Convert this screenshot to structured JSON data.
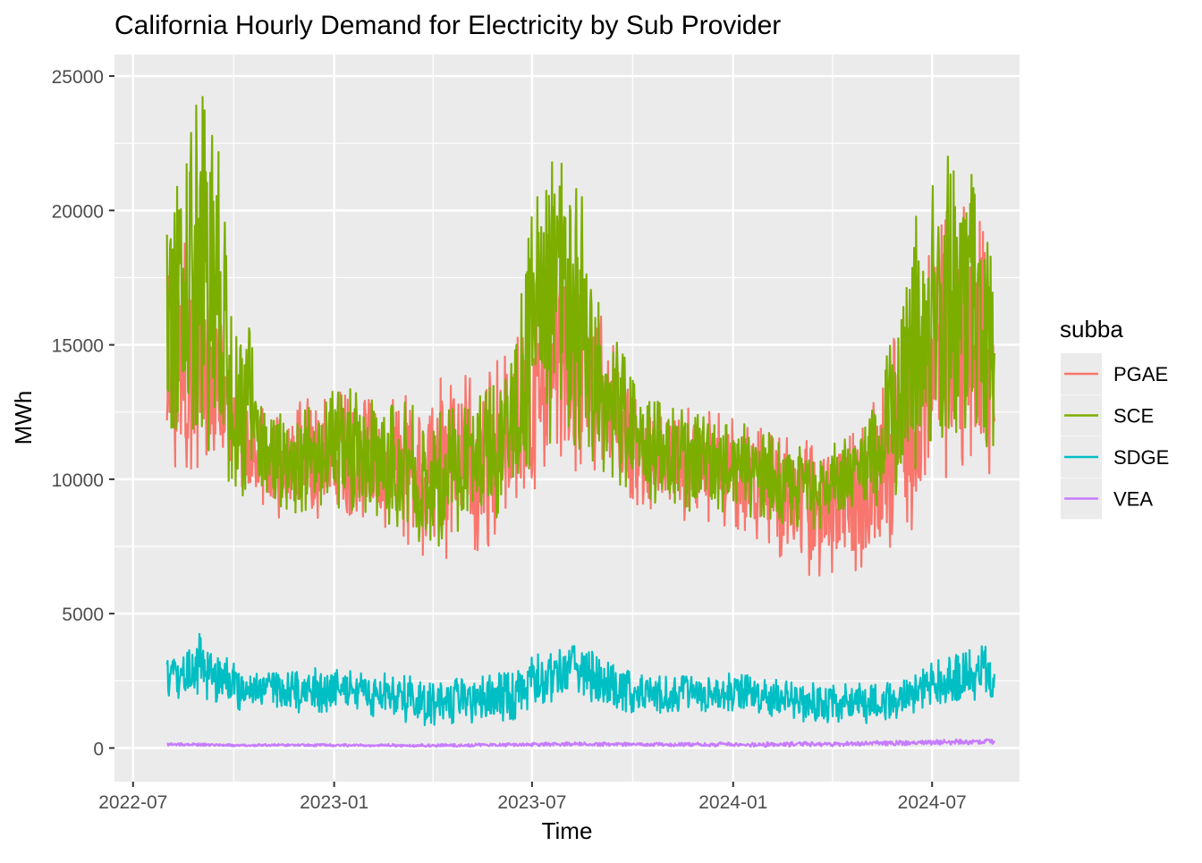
{
  "chart_data": {
    "type": "line",
    "title": "California Hourly Demand for Electricity by Sub Provider",
    "xlabel": "Time",
    "ylabel": "MWh",
    "x_ticks": [
      "2022-07",
      "2023-01",
      "2023-07",
      "2024-01",
      "2024-07"
    ],
    "x_tick_dates": [
      "2022-07-01",
      "2023-01-01",
      "2023-07-01",
      "2024-01-01",
      "2024-07-01"
    ],
    "x_range": [
      "2022-06-14",
      "2024-09-19"
    ],
    "y_ticks": [
      0,
      5000,
      10000,
      15000,
      20000,
      25000
    ],
    "ylim": [
      -1250,
      25800
    ],
    "grid": true,
    "legend_title": "subba",
    "legend_position": "right",
    "series": [
      {
        "name": "PGAE",
        "color": "#F8766D",
        "x": [
          "2022-08-01",
          "2022-08-15",
          "2022-09-01",
          "2022-09-15",
          "2022-10-01",
          "2022-10-15",
          "2022-11-01",
          "2022-11-15",
          "2022-12-01",
          "2022-12-15",
          "2023-01-01",
          "2023-01-15",
          "2023-02-01",
          "2023-02-15",
          "2023-03-01",
          "2023-03-15",
          "2023-04-01",
          "2023-04-15",
          "2023-05-01",
          "2023-05-15",
          "2023-06-01",
          "2023-06-15",
          "2023-07-01",
          "2023-07-15",
          "2023-08-01",
          "2023-08-15",
          "2023-09-01",
          "2023-09-15",
          "2023-10-01",
          "2023-10-15",
          "2023-11-01",
          "2023-11-15",
          "2023-12-01",
          "2023-12-15",
          "2024-01-01",
          "2024-01-15",
          "2024-02-01",
          "2024-02-15",
          "2024-03-01",
          "2024-03-15",
          "2024-04-01",
          "2024-04-15",
          "2024-05-01",
          "2024-05-15",
          "2024-06-01",
          "2024-06-15",
          "2024-07-01",
          "2024-07-15",
          "2024-08-01",
          "2024-08-15",
          "2024-08-27"
        ],
        "min": [
          11000,
          10000,
          10500,
          10800,
          9800,
          9300,
          8800,
          8400,
          8300,
          8300,
          8800,
          8600,
          8400,
          8100,
          7800,
          7300,
          6900,
          6800,
          7000,
          7300,
          7800,
          8000,
          9000,
          10200,
          10300,
          10200,
          9900,
          9600,
          9200,
          8700,
          8600,
          8500,
          8300,
          8200,
          8200,
          8000,
          7500,
          7000,
          6600,
          6300,
          6400,
          6500,
          6600,
          7000,
          7800,
          8200,
          9200,
          10100,
          10400,
          10200,
          9600
        ],
        "max": [
          17500,
          19000,
          18500,
          16800,
          13500,
          13000,
          12800,
          13000,
          13200,
          13300,
          13300,
          13200,
          13100,
          13000,
          13200,
          13600,
          13700,
          13900,
          14000,
          14200,
          14500,
          15200,
          17500,
          18500,
          18800,
          18000,
          16500,
          15000,
          13800,
          13000,
          12800,
          12700,
          12600,
          12500,
          12300,
          12100,
          11900,
          11700,
          11500,
          11400,
          11500,
          11800,
          12200,
          13500,
          16000,
          17500,
          19000,
          20000,
          20500,
          19500,
          17500
        ]
      },
      {
        "name": "SCE",
        "color": "#7CAE00",
        "x": [
          "2022-08-01",
          "2022-08-15",
          "2022-09-01",
          "2022-09-15",
          "2022-10-01",
          "2022-10-15",
          "2022-11-01",
          "2022-11-15",
          "2022-12-01",
          "2022-12-15",
          "2023-01-01",
          "2023-01-15",
          "2023-02-01",
          "2023-02-15",
          "2023-03-01",
          "2023-03-15",
          "2023-04-01",
          "2023-04-15",
          "2023-05-01",
          "2023-05-15",
          "2023-06-01",
          "2023-06-15",
          "2023-07-01",
          "2023-07-15",
          "2023-08-01",
          "2023-08-15",
          "2023-09-01",
          "2023-09-15",
          "2023-10-01",
          "2023-10-15",
          "2023-11-01",
          "2023-11-15",
          "2023-12-01",
          "2023-12-15",
          "2024-01-01",
          "2024-01-15",
          "2024-02-01",
          "2024-02-15",
          "2024-03-01",
          "2024-03-15",
          "2024-04-01",
          "2024-04-15",
          "2024-05-01",
          "2024-05-15",
          "2024-06-01",
          "2024-06-15",
          "2024-07-01",
          "2024-07-15",
          "2024-08-01",
          "2024-08-15",
          "2024-08-27"
        ],
        "min": [
          11500,
          11000,
          11200,
          10800,
          9500,
          9300,
          8900,
          8700,
          8700,
          8800,
          8900,
          8800,
          8600,
          8300,
          8000,
          7600,
          7400,
          7600,
          7900,
          8200,
          8600,
          9000,
          10500,
          11200,
          11300,
          11000,
          10300,
          9800,
          9300,
          9000,
          8900,
          8800,
          8800,
          8700,
          8700,
          8600,
          8500,
          8300,
          8200,
          8100,
          8300,
          8500,
          8800,
          9000,
          9500,
          10200,
          11000,
          11500,
          11700,
          11500,
          10800
        ],
        "max": [
          20500,
          21800,
          24600,
          23000,
          17000,
          15800,
          12800,
          12600,
          12800,
          13000,
          13300,
          13400,
          13200,
          13000,
          12900,
          12800,
          12500,
          12600,
          12700,
          13200,
          13800,
          15500,
          20500,
          22300,
          22300,
          21000,
          17800,
          15500,
          13800,
          13000,
          12800,
          12600,
          12400,
          12200,
          12000,
          12100,
          11800,
          11500,
          11300,
          11200,
          11300,
          11600,
          12000,
          13500,
          16800,
          20000,
          21000,
          22200,
          21800,
          20800,
          20000
        ]
      },
      {
        "name": "SDGE",
        "color": "#00BFC4",
        "x": [
          "2022-08-01",
          "2022-08-15",
          "2022-09-01",
          "2022-09-15",
          "2022-10-01",
          "2022-10-15",
          "2022-11-01",
          "2022-11-15",
          "2022-12-01",
          "2022-12-15",
          "2023-01-01",
          "2023-01-15",
          "2023-02-01",
          "2023-02-15",
          "2023-03-01",
          "2023-03-15",
          "2023-04-01",
          "2023-04-15",
          "2023-05-01",
          "2023-05-15",
          "2023-06-01",
          "2023-06-15",
          "2023-07-01",
          "2023-07-15",
          "2023-08-01",
          "2023-08-15",
          "2023-09-01",
          "2023-09-15",
          "2023-10-01",
          "2023-10-15",
          "2023-11-01",
          "2023-11-15",
          "2023-12-01",
          "2023-12-15",
          "2024-01-01",
          "2024-01-15",
          "2024-02-01",
          "2024-02-15",
          "2024-03-01",
          "2024-03-15",
          "2024-04-01",
          "2024-04-15",
          "2024-05-01",
          "2024-05-15",
          "2024-06-01",
          "2024-06-15",
          "2024-07-01",
          "2024-07-15",
          "2024-08-01",
          "2024-08-15",
          "2024-08-27"
        ],
        "min": [
          1900,
          1800,
          1900,
          1600,
          1400,
          1400,
          1300,
          1300,
          1300,
          1300,
          1300,
          1300,
          1200,
          1100,
          1000,
          900,
          800,
          800,
          900,
          900,
          1000,
          1000,
          1400,
          1700,
          1800,
          1700,
          1500,
          1400,
          1300,
          1300,
          1300,
          1300,
          1300,
          1300,
          1300,
          1300,
          1200,
          1100,
          1000,
          900,
          900,
          900,
          900,
          1000,
          1100,
          1300,
          1600,
          1700,
          1800,
          1700,
          1600
        ],
        "max": [
          3500,
          3300,
          4500,
          3700,
          3200,
          2900,
          2800,
          2800,
          2900,
          3000,
          3000,
          2900,
          2800,
          2800,
          2700,
          2700,
          2700,
          2600,
          2600,
          2800,
          2800,
          2800,
          3500,
          3600,
          3700,
          4000,
          3300,
          3100,
          2800,
          2800,
          2700,
          2700,
          2700,
          2700,
          2800,
          2700,
          2600,
          2500,
          2500,
          2500,
          2400,
          2400,
          2400,
          2400,
          2500,
          2700,
          3200,
          3400,
          3600,
          3900,
          3800
        ]
      },
      {
        "name": "VEA",
        "color": "#C77CFF",
        "x": [
          "2022-08-01",
          "2022-10-01",
          "2022-12-01",
          "2023-02-01",
          "2023-04-01",
          "2023-06-01",
          "2023-08-01",
          "2023-10-01",
          "2023-12-01",
          "2024-02-01",
          "2024-04-01",
          "2024-06-01",
          "2024-08-27"
        ],
        "min": [
          80,
          60,
          60,
          50,
          40,
          50,
          80,
          70,
          60,
          40,
          60,
          100,
          150
        ],
        "max": [
          200,
          150,
          150,
          150,
          150,
          180,
          220,
          200,
          200,
          220,
          230,
          280,
          350
        ]
      }
    ]
  }
}
